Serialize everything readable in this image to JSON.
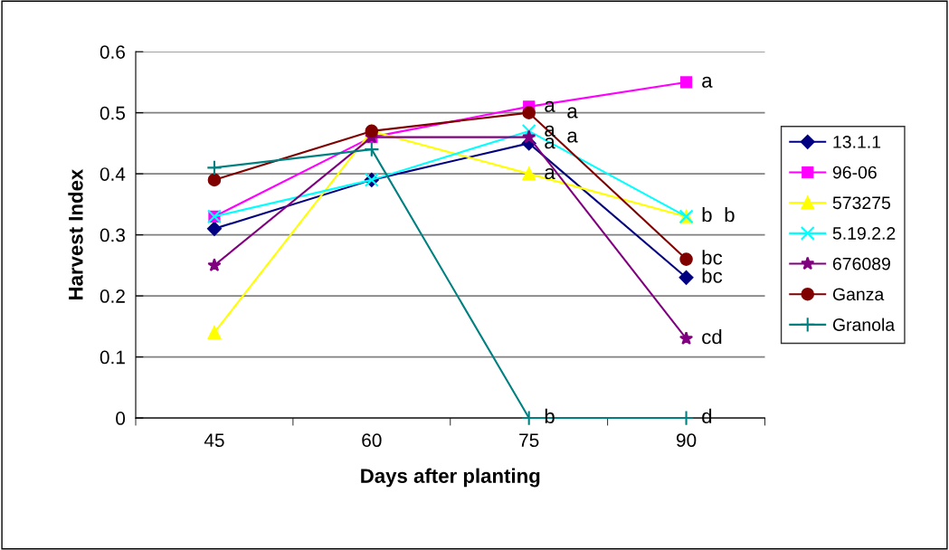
{
  "chart_data": {
    "type": "line",
    "xlabel": "Days after planting",
    "ylabel": "Harvest Index",
    "categories": [
      "45",
      "60",
      "75",
      "90"
    ],
    "ylim": [
      0,
      0.6
    ],
    "yticks": [
      {
        "value": 0,
        "label": "0"
      },
      0.1,
      0.2,
      0.3,
      0.4,
      0.5,
      0.6
    ],
    "grid": "y",
    "legend": "right",
    "line_style": "solid",
    "series": [
      {
        "name": "13.1.1",
        "color": "#000080",
        "marker": "diamond",
        "values": [
          0.31,
          0.39,
          0.45,
          0.23
        ]
      },
      {
        "name": "96-06",
        "color": "#ff00ff",
        "marker": "square",
        "values": [
          0.33,
          0.46,
          0.51,
          0.55
        ]
      },
      {
        "name": "573275",
        "color": "#ffff00",
        "marker": "triangle",
        "values": [
          0.14,
          0.47,
          0.4,
          0.33
        ]
      },
      {
        "name": "5.19.2.2",
        "color": "#00ffff",
        "marker": "cross",
        "values": [
          0.33,
          0.39,
          0.47,
          0.33
        ]
      },
      {
        "name": "676089",
        "color": "#800080",
        "marker": "star",
        "values": [
          0.25,
          0.46,
          0.46,
          0.13
        ]
      },
      {
        "name": "Ganza",
        "color": "#800000",
        "marker": "circle",
        "values": [
          0.39,
          0.47,
          0.5,
          0.26
        ]
      },
      {
        "name": "Granola",
        "color": "#008080",
        "marker": "plus",
        "values": [
          0.41,
          0.44,
          0.0,
          0.0
        ]
      }
    ],
    "annotations": [
      {
        "text": "a",
        "x": "75",
        "y": 0.51
      },
      {
        "text": "a",
        "x": "75",
        "y": 0.5
      },
      {
        "text": "a",
        "x": "75",
        "y": 0.47
      },
      {
        "text": "a",
        "x": "75",
        "y": 0.46
      },
      {
        "text": "a",
        "x": "75",
        "y": 0.45
      },
      {
        "text": "a",
        "x": "75",
        "y": 0.4
      },
      {
        "text": "b",
        "x": "75",
        "y": 0.0
      },
      {
        "text": "a",
        "x": "90",
        "y": 0.55
      },
      {
        "text": "b",
        "x": "90",
        "y": 0.33
      },
      {
        "text": "b",
        "x": "90",
        "y": 0.33
      },
      {
        "text": "bc",
        "x": "90",
        "y": 0.26
      },
      {
        "text": "bc",
        "x": "90",
        "y": 0.23
      },
      {
        "text": "cd",
        "x": "90",
        "y": 0.13
      },
      {
        "text": "d",
        "x": "90",
        "y": 0.0
      }
    ]
  }
}
